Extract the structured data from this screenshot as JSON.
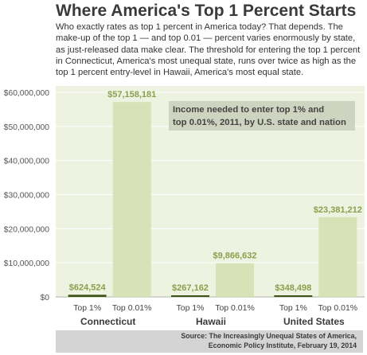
{
  "title": "Where America's Top 1 Percent Starts",
  "description": "Who exactly rates as top 1 percent in America today? That depends. The make-up of the top 1 — and top 0.01 — percent varies enormously by state, as just-released data make clear. The threshold for entering the top 1 percent in Connecticut, America's most unequal state, runs over twice as high as the top 1 percent entry-level in Hawaii, America's most equal state.",
  "source_line1": "Source: The Increasingly Unequal States of America,",
  "source_line2": "Economic Policy Institute, February 19, 2014",
  "colors": {
    "top1": "#3d5418",
    "top001": "#d7e3b6",
    "plot_bg": "#eef2e0",
    "value_label": "#8aa04c",
    "annotation_bg": "#cfd4c0"
  },
  "chart_data": {
    "type": "bar",
    "annotation": "Income needed to enter top 1% and top 0.01%, 2011, by U.S. state and nation",
    "annotation_lines": [
      "Income needed to enter top 1% and",
      "top 0.01%, 2011, by U.S. state and nation"
    ],
    "ylim": [
      0,
      60000000
    ],
    "yticks": [
      0,
      10000000,
      20000000,
      30000000,
      40000000,
      50000000,
      60000000
    ],
    "ytick_labels": [
      "$0",
      "$10,000,000",
      "$20,000,000",
      "$30,000,000",
      "$40,000,000",
      "$50,000,000",
      "$60,000,000"
    ],
    "categories": [
      "Connecticut",
      "Hawaii",
      "United States"
    ],
    "series": [
      {
        "name": "Top 1%",
        "values": [
          624524,
          267162,
          348498
        ],
        "labels": [
          "$624,524",
          "$267,162",
          "$348,498"
        ]
      },
      {
        "name": "Top 0.01%",
        "values": [
          57158181,
          9866632,
          23381212
        ],
        "labels": [
          "$57,158,181",
          "$9,866,632",
          "$23,381,212"
        ]
      }
    ],
    "grid": true
  }
}
